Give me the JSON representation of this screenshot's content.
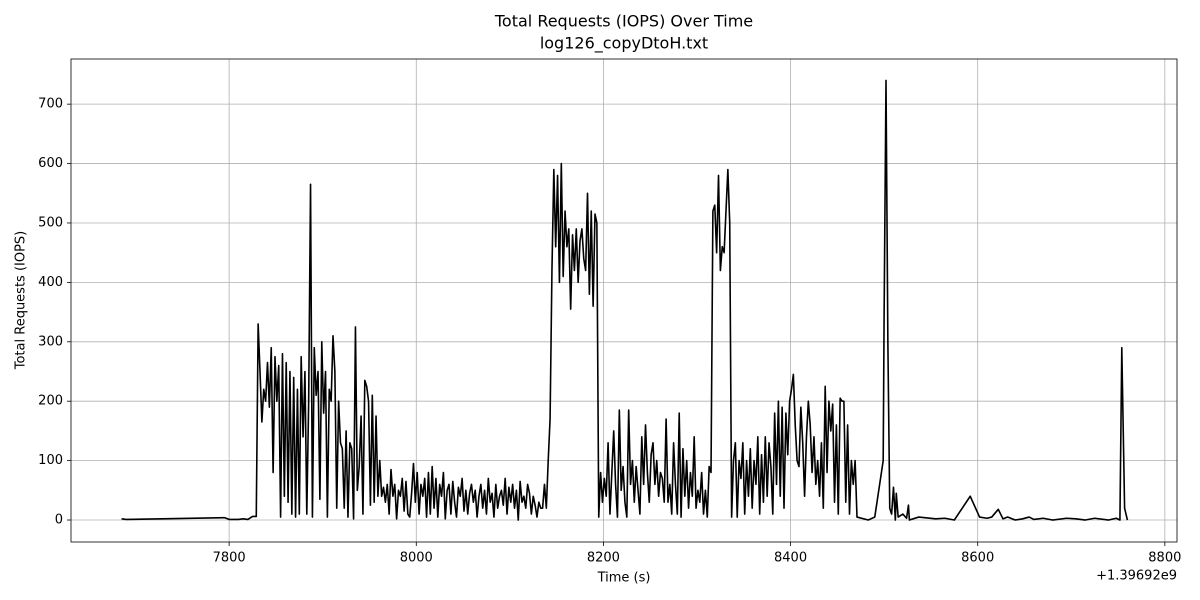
{
  "chart_data": {
    "type": "line",
    "title": "Total Requests (IOPS) Over Time",
    "subtitle": "log126_copyDtoH.txt",
    "x_label": "Time (s)",
    "y_label": "Total Requests (IOPS)",
    "x_offset_label": "+1.39692e9",
    "color": "#000000",
    "grid": true,
    "xlim": [
      7631,
      8813
    ],
    "ylim": [
      -37,
      776
    ],
    "xticks": [
      7800,
      8000,
      8200,
      8400,
      8600,
      8800
    ],
    "yticks": [
      0,
      100,
      200,
      300,
      400,
      500,
      600,
      700
    ],
    "x": [
      7685,
      7690,
      7795,
      7800,
      7810,
      7815,
      7820,
      7825,
      7829,
      7831,
      7833,
      7835,
      7837,
      7839,
      7841,
      7843,
      7845,
      7847,
      7849,
      7851,
      7853,
      7855,
      7857,
      7859,
      7861,
      7863,
      7865,
      7867,
      7869,
      7871,
      7873,
      7875,
      7877,
      7879,
      7881,
      7883,
      7885,
      7887,
      7889,
      7891,
      7893,
      7895,
      7897,
      7899,
      7901,
      7903,
      7905,
      7907,
      7909,
      7911,
      7913,
      7915,
      7917,
      7919,
      7921,
      7923,
      7925,
      7927,
      7929,
      7931,
      7933,
      7935,
      7937,
      7939,
      7941,
      7943,
      7945,
      7947,
      7949,
      7951,
      7953,
      7955,
      7957,
      7959,
      7961,
      7963,
      7965,
      7967,
      7969,
      7971,
      7973,
      7975,
      7977,
      7979,
      7981,
      7983,
      7985,
      7987,
      7989,
      7991,
      7993,
      7995,
      7997,
      7999,
      8001,
      8003,
      8005,
      8007,
      8009,
      8011,
      8013,
      8015,
      8017,
      8019,
      8021,
      8023,
      8025,
      8027,
      8029,
      8031,
      8033,
      8035,
      8037,
      8039,
      8041,
      8043,
      8045,
      8047,
      8049,
      8051,
      8053,
      8055,
      8057,
      8059,
      8061,
      8063,
      8065,
      8067,
      8069,
      8071,
      8073,
      8075,
      8077,
      8079,
      8081,
      8083,
      8085,
      8087,
      8089,
      8091,
      8093,
      8095,
      8097,
      8099,
      8101,
      8103,
      8105,
      8107,
      8109,
      8111,
      8113,
      8115,
      8117,
      8119,
      8121,
      8123,
      8125,
      8127,
      8129,
      8131,
      8133,
      8135,
      8137,
      8139,
      8141,
      8143,
      8145,
      8147,
      8149,
      8151,
      8153,
      8155,
      8157,
      8159,
      8161,
      8163,
      8165,
      8167,
      8169,
      8171,
      8173,
      8175,
      8177,
      8179,
      8181,
      8183,
      8185,
      8187,
      8189,
      8191,
      8193,
      8195,
      8197,
      8199,
      8201,
      8203,
      8205,
      8207,
      8209,
      8211,
      8213,
      8215,
      8217,
      8219,
      8221,
      8223,
      8225,
      8227,
      8229,
      8231,
      8233,
      8235,
      8237,
      8239,
      8241,
      8243,
      8245,
      8247,
      8249,
      8251,
      8253,
      8255,
      8257,
      8259,
      8261,
      8263,
      8265,
      8267,
      8269,
      8271,
      8273,
      8275,
      8277,
      8279,
      8281,
      8283,
      8285,
      8287,
      8289,
      8291,
      8293,
      8295,
      8297,
      8299,
      8301,
      8303,
      8305,
      8307,
      8309,
      8311,
      8313,
      8315,
      8317,
      8319,
      8321,
      8323,
      8325,
      8327,
      8329,
      8331,
      8333,
      8335,
      8337,
      8339,
      8341,
      8343,
      8345,
      8347,
      8349,
      8351,
      8353,
      8355,
      8357,
      8359,
      8361,
      8363,
      8365,
      8367,
      8369,
      8371,
      8373,
      8375,
      8377,
      8379,
      8381,
      8383,
      8385,
      8387,
      8389,
      8391,
      8393,
      8395,
      8397,
      8399,
      8401,
      8403,
      8405,
      8407,
      8409,
      8411,
      8413,
      8415,
      8417,
      8419,
      8421,
      8423,
      8425,
      8427,
      8429,
      8431,
      8433,
      8435,
      8437,
      8439,
      8441,
      8443,
      8445,
      8447,
      8449,
      8451,
      8453,
      8455,
      8457,
      8459,
      8461,
      8463,
      8465,
      8467,
      8469,
      8471,
      8483,
      8490,
      8499,
      8500,
      8502,
      8504,
      8506,
      8508,
      8510,
      8512,
      8513,
      8515,
      8520,
      8524,
      8526,
      8527,
      8537,
      8555,
      8565,
      8575,
      8592,
      8602,
      8610,
      8615,
      8622,
      8627,
      8632,
      8640,
      8648,
      8655,
      8660,
      8670,
      8680,
      8695,
      8705,
      8715,
      8725,
      8740,
      8748,
      8752,
      8754,
      8757,
      8760
    ],
    "values": [
      2,
      1,
      4,
      1,
      1,
      2,
      1,
      6,
      6,
      330,
      250,
      165,
      220,
      200,
      265,
      190,
      290,
      80,
      275,
      200,
      260,
      5,
      280,
      40,
      265,
      30,
      250,
      10,
      240,
      5,
      220,
      10,
      275,
      140,
      250,
      10,
      200,
      565,
      5,
      290,
      210,
      250,
      35,
      300,
      180,
      250,
      5,
      220,
      200,
      310,
      250,
      20,
      200,
      130,
      120,
      20,
      150,
      5,
      130,
      120,
      2,
      325,
      50,
      90,
      175,
      10,
      235,
      225,
      200,
      25,
      210,
      30,
      175,
      40,
      100,
      40,
      55,
      30,
      60,
      10,
      85,
      40,
      60,
      2,
      50,
      40,
      70,
      15,
      65,
      10,
      5,
      45,
      95,
      30,
      80,
      10,
      60,
      40,
      70,
      5,
      80,
      10,
      90,
      20,
      70,
      5,
      60,
      40,
      80,
      2,
      50,
      60,
      10,
      65,
      30,
      5,
      55,
      40,
      70,
      15,
      50,
      10,
      45,
      60,
      30,
      50,
      5,
      40,
      60,
      20,
      50,
      10,
      70,
      30,
      45,
      5,
      60,
      20,
      40,
      50,
      25,
      70,
      10,
      55,
      30,
      60,
      20,
      50,
      0,
      65,
      30,
      40,
      20,
      60,
      45,
      10,
      40,
      25,
      5,
      30,
      20,
      20,
      60,
      20,
      100,
      170,
      420,
      590,
      460,
      580,
      400,
      600,
      410,
      520,
      460,
      490,
      355,
      480,
      420,
      490,
      400,
      470,
      490,
      440,
      420,
      550,
      380,
      520,
      360,
      515,
      500,
      5,
      80,
      30,
      70,
      40,
      130,
      10,
      80,
      150,
      60,
      5,
      185,
      50,
      90,
      30,
      5,
      185,
      60,
      100,
      30,
      90,
      50,
      10,
      140,
      60,
      160,
      80,
      30,
      110,
      130,
      60,
      100,
      40,
      80,
      70,
      30,
      170,
      30,
      60,
      10,
      130,
      60,
      10,
      180,
      5,
      120,
      40,
      100,
      20,
      80,
      40,
      140,
      20,
      50,
      30,
      80,
      10,
      50,
      5,
      90,
      80,
      520,
      530,
      450,
      580,
      420,
      460,
      450,
      520,
      590,
      500,
      5,
      100,
      130,
      5,
      100,
      70,
      130,
      10,
      100,
      40,
      120,
      20,
      100,
      60,
      140,
      10,
      110,
      30,
      140,
      40,
      130,
      90,
      10,
      180,
      60,
      200,
      40,
      190,
      20,
      180,
      110,
      200,
      220,
      245,
      160,
      100,
      90,
      190,
      130,
      40,
      140,
      200,
      160,
      80,
      140,
      60,
      100,
      40,
      130,
      20,
      225,
      80,
      200,
      150,
      195,
      30,
      160,
      10,
      205,
      200,
      200,
      30,
      160,
      10,
      100,
      60,
      100,
      5,
      0,
      5,
      100,
      350,
      740,
      300,
      20,
      10,
      55,
      0,
      45,
      5,
      10,
      3,
      25,
      0,
      5,
      2,
      3,
      0,
      40,
      5,
      3,
      5,
      18,
      2,
      5,
      0,
      2,
      5,
      1,
      3,
      0,
      3,
      2,
      0,
      3,
      0,
      3,
      0,
      290,
      20,
      0
    ]
  }
}
